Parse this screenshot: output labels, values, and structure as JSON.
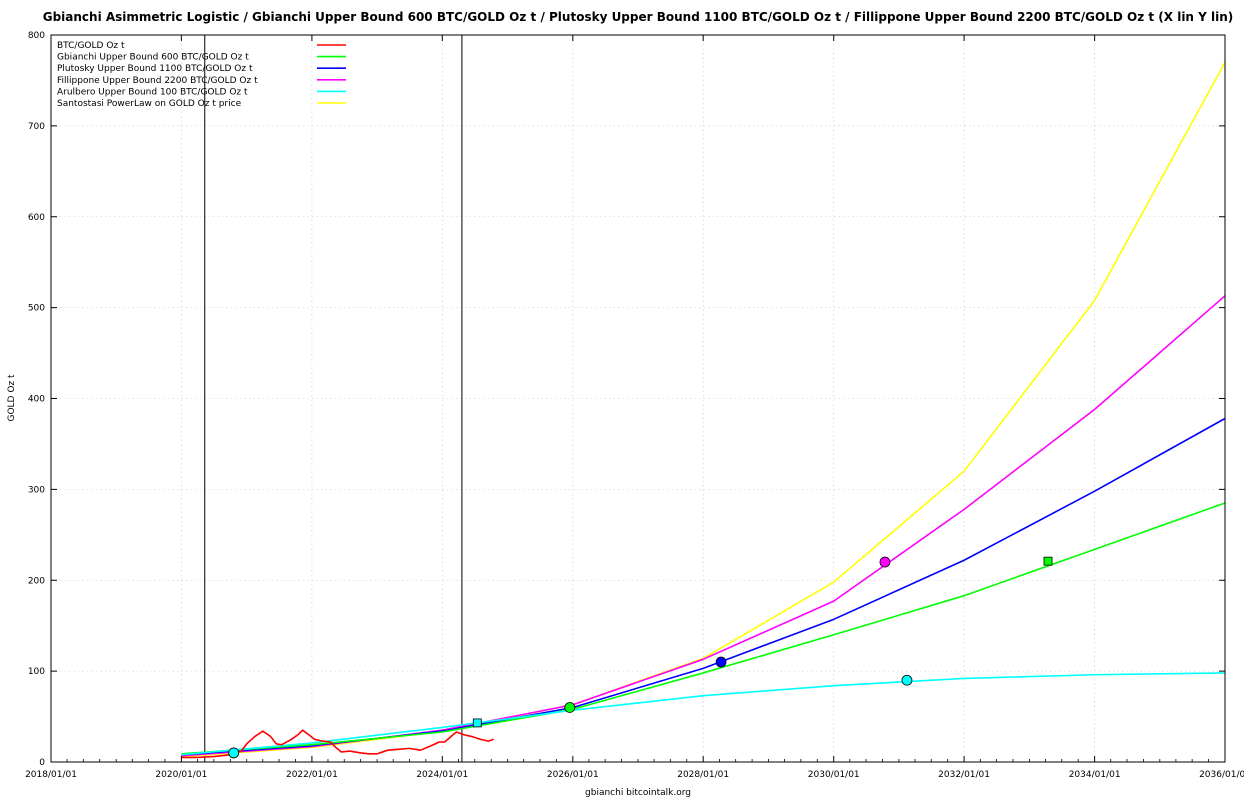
{
  "chart_data": {
    "type": "line",
    "title": "Gbianchi Asimmetric Logistic / Gbianchi Upper Bound 600  BTC/GOLD Oz t / Plutosky Upper Bound 1100  BTC/GOLD Oz t / Fillippone Upper Bound 2200  BTC/GOLD Oz t  (X lin Y lin)",
    "xlabel": "gbianchi bitcointalk.org",
    "ylabel": "GOLD Oz t",
    "x_scale": "linear-date",
    "y_scale": "linear",
    "xlim": [
      "2018/01/01",
      "2036/01/01"
    ],
    "ylim": [
      0,
      800
    ],
    "x_ticks": [
      "2018/01/01",
      "2020/01/01",
      "2022/01/01",
      "2024/01/01",
      "2026/01/01",
      "2028/01/01",
      "2030/01/01",
      "2032/01/01",
      "2034/01/01",
      "2036/01/01"
    ],
    "y_ticks": [
      0,
      100,
      200,
      300,
      400,
      500,
      600,
      700,
      800
    ],
    "grid": true,
    "legend_position": "top-left",
    "vertical_lines": [
      "2020/05/11",
      "2024/04/20"
    ],
    "series": [
      {
        "name": "BTC/GOLD Oz t",
        "color": "#ff0000",
        "points": [
          [
            "2020/01/01",
            5
          ],
          [
            "2020/04/01",
            5
          ],
          [
            "2020/07/01",
            6
          ],
          [
            "2020/10/01",
            8
          ],
          [
            "2020/12/01",
            12
          ],
          [
            "2021/01/01",
            20
          ],
          [
            "2021/02/15",
            28
          ],
          [
            "2021/04/01",
            34
          ],
          [
            "2021/05/15",
            28
          ],
          [
            "2021/06/15",
            20
          ],
          [
            "2021/07/15",
            19
          ],
          [
            "2021/09/01",
            24
          ],
          [
            "2021/10/15",
            30
          ],
          [
            "2021/11/10",
            35
          ],
          [
            "2021/12/15",
            30
          ],
          [
            "2022/01/15",
            25
          ],
          [
            "2022/03/01",
            23
          ],
          [
            "2022/04/15",
            22
          ],
          [
            "2022/05/15",
            16
          ],
          [
            "2022/06/15",
            11
          ],
          [
            "2022/08/01",
            12
          ],
          [
            "2022/10/01",
            10
          ],
          [
            "2022/11/15",
            9
          ],
          [
            "2023/01/01",
            9
          ],
          [
            "2023/03/01",
            13
          ],
          [
            "2023/05/01",
            14
          ],
          [
            "2023/07/01",
            15
          ],
          [
            "2023/09/01",
            13
          ],
          [
            "2023/11/01",
            18
          ],
          [
            "2023/12/15",
            22
          ],
          [
            "2024/01/15",
            22
          ],
          [
            "2024/03/01",
            30
          ],
          [
            "2024/03/20",
            33
          ],
          [
            "2024/05/01",
            30
          ],
          [
            "2024/06/15",
            28
          ],
          [
            "2024/08/01",
            25
          ],
          [
            "2024/09/15",
            23
          ],
          [
            "2024/10/15",
            25
          ]
        ]
      },
      {
        "name": "Gbianchi Upper Bound 600  BTC/GOLD Oz t",
        "color": "#00ff00",
        "points": [
          [
            "2020/01/01",
            9
          ],
          [
            "2022/01/01",
            19
          ],
          [
            "2024/01/01",
            33
          ],
          [
            "2026/01/01",
            58
          ],
          [
            "2028/01/01",
            98
          ],
          [
            "2030/01/01",
            140
          ],
          [
            "2032/01/01",
            183
          ],
          [
            "2034/01/01",
            234
          ],
          [
            "2036/01/01",
            285
          ]
        ],
        "markers": [
          {
            "x": "2025/12/15",
            "y": 60,
            "shape": "circle"
          },
          {
            "x": "2033/04/15",
            "y": 221,
            "shape": "square"
          }
        ]
      },
      {
        "name": "Plutosky Upper Bound 1100  BTC/GOLD Oz t",
        "color": "#0000ff",
        "points": [
          [
            "2020/01/01",
            8
          ],
          [
            "2022/01/01",
            18
          ],
          [
            "2024/01/01",
            34
          ],
          [
            "2026/01/01",
            60
          ],
          [
            "2028/01/01",
            103
          ],
          [
            "2030/01/01",
            157
          ],
          [
            "2032/01/01",
            222
          ],
          [
            "2034/01/01",
            298
          ],
          [
            "2036/01/01",
            378
          ]
        ],
        "markers": [
          {
            "x": "2028/04/10",
            "y": 110,
            "shape": "circle"
          }
        ]
      },
      {
        "name": "Fillippone Upper Bound 2200  BTC/GOLD Oz t",
        "color": "#ff00ff",
        "points": [
          [
            "2020/01/01",
            7
          ],
          [
            "2022/01/01",
            17
          ],
          [
            "2024/01/01",
            35
          ],
          [
            "2026/01/01",
            63
          ],
          [
            "2028/01/01",
            113
          ],
          [
            "2030/01/01",
            177
          ],
          [
            "2032/01/01",
            278
          ],
          [
            "2034/01/01",
            388
          ],
          [
            "2036/01/01",
            513
          ]
        ],
        "markers": [
          {
            "x": "2030/10/15",
            "y": 220,
            "shape": "circle"
          }
        ]
      },
      {
        "name": "Arulbero Upper Bound 100  BTC/GOLD Oz t",
        "color": "#00ffff",
        "points": [
          [
            "2020/01/01",
            8
          ],
          [
            "2022/01/01",
            21
          ],
          [
            "2024/01/01",
            38
          ],
          [
            "2026/01/01",
            57
          ],
          [
            "2028/01/01",
            73
          ],
          [
            "2030/01/01",
            84
          ],
          [
            "2032/01/01",
            92
          ],
          [
            "2034/01/01",
            96
          ],
          [
            "2036/01/01",
            98
          ]
        ],
        "markers": [
          {
            "x": "2020/10/20",
            "y": 10,
            "shape": "circle"
          },
          {
            "x": "2024/07/15",
            "y": 43,
            "shape": "square"
          },
          {
            "x": "2031/02/15",
            "y": 90,
            "shape": "circle"
          }
        ]
      },
      {
        "name": "Santostasi PowerLaw on GOLD Oz t price",
        "color": "#ffff00",
        "points": [
          [
            "2020/01/01",
            6
          ],
          [
            "2022/01/01",
            16
          ],
          [
            "2024/01/01",
            34
          ],
          [
            "2026/01/01",
            63
          ],
          [
            "2028/01/01",
            114
          ],
          [
            "2030/01/01",
            198
          ],
          [
            "2032/01/01",
            320
          ],
          [
            "2034/01/01",
            508
          ],
          [
            "2036/01/01",
            770
          ]
        ]
      }
    ]
  }
}
